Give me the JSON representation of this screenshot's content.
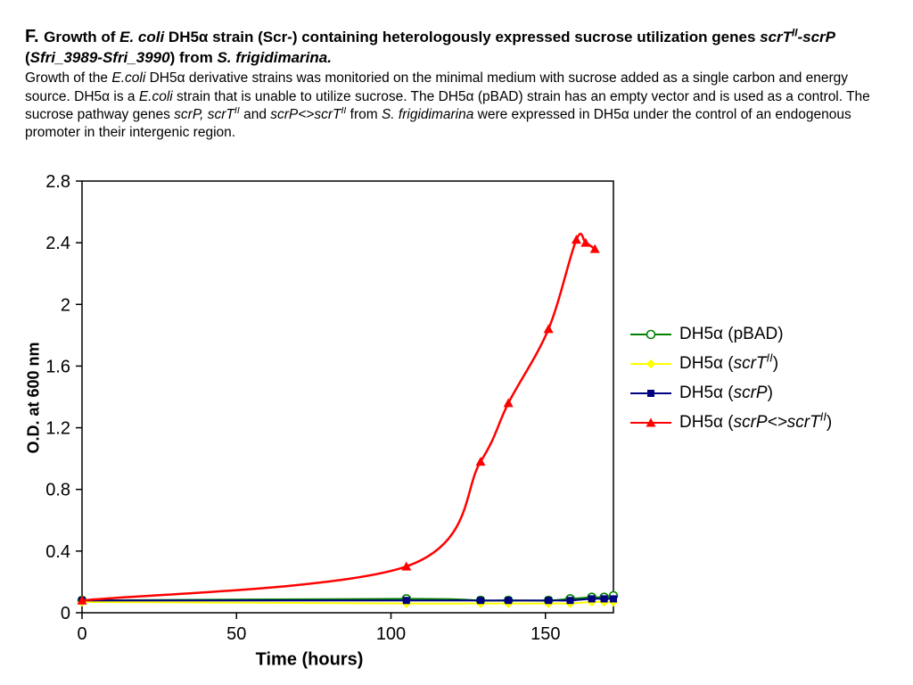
{
  "header": {
    "title_segments": [
      {
        "t": "F. ",
        "lg": true
      },
      {
        "t": "Growth of "
      },
      {
        "t": "E. coli",
        "i": true
      },
      {
        "t": " DH5α strain (Scr-) containing heterologously expressed sucrose utilization genes "
      },
      {
        "t": "scrT",
        "i": true
      },
      {
        "t": "II",
        "i": true,
        "sup": true
      },
      {
        "t": "-scrP",
        "i": true
      },
      {
        "t": " ("
      },
      {
        "t": "Sfri_3989-Sfri_3990",
        "i": true
      },
      {
        "t": ") from "
      },
      {
        "t": "S. frigidimarina.",
        "i": true
      }
    ],
    "body_segments": [
      {
        "t": "Growth of the "
      },
      {
        "t": "E.coli",
        "i": true
      },
      {
        "t": " DH5α derivative strains was monitoried on the minimal medium with sucrose added as a single carbon and energy source. DH5α is a "
      },
      {
        "t": "E.coli",
        "i": true
      },
      {
        "t": " strain that is unable to utilize sucrose. The DH5α (pBAD) strain has an empty vector and is used as a control. The sucrose pathway genes "
      },
      {
        "t": "scrP, scrT",
        "i": true
      },
      {
        "t": "II",
        "i": true,
        "sup": true
      },
      {
        "t": " and "
      },
      {
        "t": "scrP<>scrT",
        "i": true
      },
      {
        "t": "II",
        "i": true,
        "sup": true
      },
      {
        "t": " from "
      },
      {
        "t": "S. frigidimarina",
        "i": true
      },
      {
        "t": " were expressed in DH5α under the control of an endogenous promoter in their intergenic region."
      }
    ]
  },
  "chart_data": {
    "type": "line",
    "title": "",
    "xlabel": "Time (hours)",
    "ylabel": "O.D. at 600 nm",
    "xlim": [
      0,
      172
    ],
    "ylim": [
      0,
      2.8
    ],
    "xticks": [
      0,
      50,
      100,
      150
    ],
    "xtick_labels": [
      "0",
      "50",
      "100",
      "150"
    ],
    "yticks": [
      0,
      0.4,
      0.8,
      1.2,
      1.6,
      2,
      2.4,
      2.8
    ],
    "ytick_labels": [
      "0",
      "0.4",
      "0.8",
      "1.2",
      "1.6",
      "2",
      "2.4",
      "2.8"
    ],
    "grid": false,
    "legend_position": "right",
    "series": [
      {
        "name": "DH5α (pBAD)",
        "color": "#008000",
        "marker": "circle-open",
        "line_width": 2,
        "x": [
          0,
          105,
          129,
          138,
          151,
          158,
          165,
          169,
          172
        ],
        "y": [
          0.08,
          0.09,
          0.08,
          0.08,
          0.08,
          0.09,
          0.1,
          0.1,
          0.11
        ]
      },
      {
        "name": "DH5α (scrTII)",
        "color": "#ffff00",
        "marker": "diamond",
        "line_width": 2,
        "x": [
          0,
          105,
          129,
          138,
          151,
          158,
          165,
          169,
          172
        ],
        "y": [
          0.07,
          0.06,
          0.06,
          0.06,
          0.06,
          0.06,
          0.07,
          0.07,
          0.07
        ]
      },
      {
        "name": "DH5α (scrP)",
        "color": "#000080",
        "marker": "square",
        "line_width": 2,
        "x": [
          0,
          105,
          129,
          138,
          151,
          158,
          165,
          169,
          172
        ],
        "y": [
          0.08,
          0.08,
          0.08,
          0.08,
          0.08,
          0.08,
          0.09,
          0.09,
          0.09
        ]
      },
      {
        "name": "DH5α (scrP<>scrTII)",
        "color": "#ff0000",
        "marker": "triangle",
        "line_width": 2.5,
        "x": [
          0,
          105,
          129,
          138,
          151,
          160,
          163,
          166
        ],
        "y": [
          0.08,
          0.3,
          0.98,
          1.36,
          1.84,
          2.42,
          2.4,
          2.36
        ]
      }
    ],
    "legend": [
      {
        "segments": [
          {
            "t": "DH5α (pBAD)"
          }
        ]
      },
      {
        "segments": [
          {
            "t": "DH5α ("
          },
          {
            "t": "scrT",
            "i": true
          },
          {
            "t": "II",
            "i": true,
            "sup": true
          },
          {
            "t": ")"
          }
        ]
      },
      {
        "segments": [
          {
            "t": "DH5α ("
          },
          {
            "t": "scrP",
            "i": true
          },
          {
            "t": ")"
          }
        ]
      },
      {
        "segments": [
          {
            "t": "DH5α ("
          },
          {
            "t": "scrP<>scrT",
            "i": true
          },
          {
            "t": "II",
            "i": true,
            "sup": true
          },
          {
            "t": ")"
          }
        ]
      }
    ]
  }
}
